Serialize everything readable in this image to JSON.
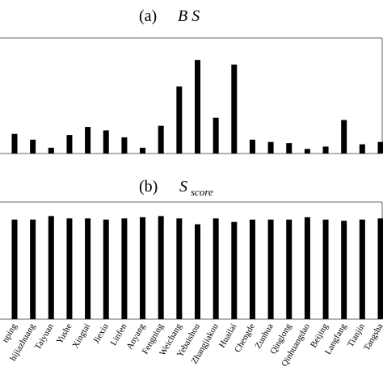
{
  "chart_data": [
    {
      "type": "bar",
      "label": "(a)",
      "title": "B S",
      "color": "#000000",
      "ylim": [
        0,
        1
      ],
      "values": [
        0.17,
        0.12,
        0.05,
        0.16,
        0.23,
        0.2,
        0.14,
        0.05,
        0.24,
        0.58,
        0.81,
        0.31,
        0.77,
        0.12,
        0.1,
        0.09,
        0.04,
        0.06,
        0.29,
        0.08,
        0.1
      ]
    },
    {
      "type": "bar",
      "label": "(b)",
      "title": "S",
      "title_sub": "score",
      "color": "#000000",
      "ylim": [
        0,
        1
      ],
      "categories": [
        "nping",
        "hijiazhuang",
        "Taiyuan",
        "Yushe",
        "Xingtai",
        "Jiexiu",
        "Linfen",
        "Anyang",
        "Fengning",
        "Weichang",
        "Yebaishou",
        "Zhangjiakou",
        "Huailai",
        "Chengde",
        "Zunhua",
        "Qinglong",
        "Qinhuangdao",
        "Beijing",
        "Langfang",
        "Tianjin",
        "Tangsha"
      ],
      "values": [
        0.85,
        0.85,
        0.88,
        0.86,
        0.86,
        0.85,
        0.86,
        0.87,
        0.88,
        0.86,
        0.81,
        0.86,
        0.83,
        0.85,
        0.85,
        0.85,
        0.87,
        0.85,
        0.84,
        0.85,
        0.86
      ]
    }
  ]
}
